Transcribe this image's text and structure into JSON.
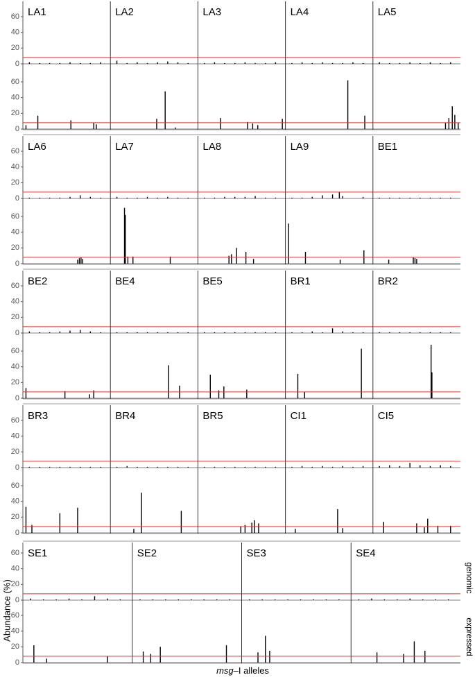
{
  "chart_data": {
    "type": "bar",
    "y_label": "Abundance (%)",
    "x_label_italic": "msg",
    "x_label": "–I alleles",
    "facets": [
      "genomic",
      "expressed"
    ],
    "ylim": [
      0,
      75
    ],
    "yticks": [
      0,
      20,
      40,
      60
    ],
    "xlim": [
      0,
      100
    ],
    "threshold": 8,
    "threshold_color": "#e8302a",
    "color": "#000000",
    "panels": [
      {
        "name": "LA1",
        "genomic": {
          "x": [
            6,
            18,
            30,
            42,
            54,
            66,
            78,
            90
          ],
          "values": [
            2,
            1,
            1,
            1,
            2,
            1,
            1,
            2
          ]
        },
        "expressed": {
          "x": [
            2,
            16,
            55,
            82,
            85
          ],
          "values": [
            5,
            17,
            11,
            8,
            6
          ]
        }
      },
      {
        "name": "LA2",
        "genomic": {
          "x": [
            6,
            18,
            30,
            42,
            54,
            66,
            78,
            90
          ],
          "values": [
            4,
            1,
            2,
            1,
            2,
            3,
            2,
            1
          ]
        },
        "expressed": {
          "x": [
            53,
            63,
            75
          ],
          "values": [
            13,
            48,
            2
          ]
        }
      },
      {
        "name": "LA3",
        "genomic": {
          "x": [
            6,
            18,
            30,
            42,
            54,
            66,
            78,
            90
          ],
          "values": [
            1,
            2,
            1,
            1,
            2,
            1,
            1,
            2
          ]
        },
        "expressed": {
          "x": [
            25,
            57,
            63,
            69,
            98
          ],
          "values": [
            14,
            9,
            7,
            5,
            13
          ]
        }
      },
      {
        "name": "LA4",
        "genomic": {
          "x": [
            6,
            18,
            30,
            42,
            54,
            66,
            78,
            90
          ],
          "values": [
            1,
            2,
            1,
            2,
            1,
            1,
            2,
            1
          ]
        },
        "expressed": {
          "x": [
            72,
            92
          ],
          "values": [
            62,
            17
          ]
        }
      },
      {
        "name": "LA5",
        "genomic": {
          "x": [
            6,
            18,
            30,
            42,
            54,
            66,
            78,
            90
          ],
          "values": [
            2,
            1,
            1,
            2,
            1,
            2,
            1,
            2
          ]
        },
        "expressed": {
          "x": [
            84,
            88,
            92,
            95,
            99
          ],
          "values": [
            8,
            14,
            29,
            18,
            8
          ]
        }
      },
      {
        "name": "LA6",
        "genomic": {
          "x": [
            6,
            18,
            30,
            42,
            54,
            66,
            78,
            90
          ],
          "values": [
            1,
            1,
            1,
            1,
            2,
            4,
            2,
            1
          ]
        },
        "expressed": {
          "x": [
            63,
            65,
            67,
            69
          ],
          "values": [
            5,
            7,
            8,
            6
          ]
        }
      },
      {
        "name": "LA7",
        "genomic": {
          "x": [
            6,
            18,
            30,
            42,
            54,
            66,
            78,
            90
          ],
          "values": [
            2,
            1,
            1,
            2,
            1,
            2,
            1,
            1
          ]
        },
        "expressed": {
          "x": [
            15,
            16,
            19,
            25,
            69
          ],
          "values": [
            71,
            62,
            9,
            9,
            9
          ]
        }
      },
      {
        "name": "LA8",
        "genomic": {
          "x": [
            6,
            18,
            30,
            42,
            54,
            66,
            78,
            90
          ],
          "values": [
            1,
            1,
            2,
            2,
            2,
            3,
            1,
            1
          ]
        },
        "expressed": {
          "x": [
            35,
            38,
            44,
            55,
            64
          ],
          "values": [
            10,
            12,
            20,
            15,
            6
          ]
        }
      },
      {
        "name": "LA9",
        "genomic": {
          "x": [
            6,
            18,
            30,
            42,
            54,
            62,
            66,
            90
          ],
          "values": [
            1,
            1,
            2,
            4,
            5,
            8,
            3,
            2
          ]
        },
        "expressed": {
          "x": [
            2,
            22,
            63,
            91
          ],
          "values": [
            51,
            15,
            5,
            17
          ]
        }
      },
      {
        "name": "BE1",
        "genomic": {
          "x": [
            6,
            18,
            30,
            42,
            54,
            66,
            78,
            90
          ],
          "values": [
            1,
            1,
            1,
            1,
            1,
            1,
            1,
            1
          ]
        },
        "expressed": {
          "x": [
            17,
            46,
            48,
            50
          ],
          "values": [
            5,
            8,
            7,
            6
          ]
        }
      },
      {
        "name": "BE2",
        "genomic": {
          "x": [
            6,
            18,
            30,
            42,
            54,
            66,
            78,
            90
          ],
          "values": [
            2,
            1,
            1,
            2,
            3,
            4,
            2,
            1
          ]
        },
        "expressed": {
          "x": [
            2,
            48,
            77,
            82
          ],
          "values": [
            13,
            9,
            5,
            10
          ]
        }
      },
      {
        "name": "BE4",
        "genomic": {
          "x": [
            6,
            18,
            30,
            42,
            54,
            66,
            78,
            90
          ],
          "values": [
            1,
            1,
            1,
            1,
            1,
            1,
            1,
            1
          ]
        },
        "expressed": {
          "x": [
            67,
            80
          ],
          "values": [
            42,
            16
          ]
        }
      },
      {
        "name": "BE5",
        "genomic": {
          "x": [
            6,
            18,
            30,
            42,
            54,
            66,
            78,
            90
          ],
          "values": [
            1,
            1,
            1,
            1,
            1,
            1,
            1,
            1
          ]
        },
        "expressed": {
          "x": [
            13,
            23,
            29,
            56
          ],
          "values": [
            30,
            10,
            15,
            11
          ]
        }
      },
      {
        "name": "BR1",
        "genomic": {
          "x": [
            6,
            18,
            30,
            42,
            54,
            66,
            78,
            90
          ],
          "values": [
            1,
            1,
            2,
            1,
            6,
            2,
            1,
            1
          ]
        },
        "expressed": {
          "x": [
            13,
            21,
            88
          ],
          "values": [
            31,
            8,
            63
          ]
        }
      },
      {
        "name": "BR2",
        "genomic": {
          "x": [
            6,
            18,
            30,
            42,
            54,
            66,
            78,
            90
          ],
          "values": [
            1,
            1,
            1,
            1,
            1,
            1,
            1,
            1
          ]
        },
        "expressed": {
          "x": [
            67,
            68
          ],
          "values": [
            68,
            33
          ]
        }
      },
      {
        "name": "BR3",
        "genomic": {
          "x": [
            6,
            18,
            30,
            42,
            54,
            66,
            78,
            90
          ],
          "values": [
            1,
            1,
            1,
            1,
            1,
            1,
            1,
            1
          ]
        },
        "expressed": {
          "x": [
            2,
            9,
            42,
            63
          ],
          "values": [
            33,
            10,
            25,
            32
          ]
        }
      },
      {
        "name": "BR4",
        "genomic": {
          "x": [
            6,
            18,
            30,
            42,
            54,
            66,
            78,
            90
          ],
          "values": [
            1,
            2,
            1,
            1,
            1,
            1,
            1,
            1
          ]
        },
        "expressed": {
          "x": [
            26,
            35,
            82
          ],
          "values": [
            5,
            51,
            28
          ]
        }
      },
      {
        "name": "BR5",
        "genomic": {
          "x": [
            6,
            18,
            30,
            42,
            54,
            66,
            78,
            90
          ],
          "values": [
            1,
            1,
            1,
            1,
            1,
            1,
            1,
            1
          ]
        },
        "expressed": {
          "x": [
            49,
            54,
            62,
            65,
            70
          ],
          "values": [
            8,
            10,
            13,
            16,
            12
          ]
        }
      },
      {
        "name": "CI1",
        "genomic": {
          "x": [
            6,
            18,
            30,
            42,
            54,
            66,
            78,
            90
          ],
          "values": [
            1,
            2,
            1,
            2,
            1,
            2,
            1,
            2
          ]
        },
        "expressed": {
          "x": [
            10,
            60,
            66
          ],
          "values": [
            5,
            30,
            6
          ]
        }
      },
      {
        "name": "CI5",
        "genomic": {
          "x": [
            6,
            18,
            30,
            42,
            54,
            66,
            78,
            90
          ],
          "values": [
            2,
            3,
            2,
            6,
            3,
            2,
            3,
            2
          ]
        },
        "expressed": {
          "x": [
            11,
            50,
            59,
            63,
            75,
            90
          ],
          "values": [
            14,
            12,
            7,
            18,
            9,
            9
          ]
        }
      },
      {
        "name": "SE1",
        "genomic": {
          "x": [
            6,
            18,
            30,
            42,
            54,
            66,
            78,
            90
          ],
          "values": [
            2,
            1,
            1,
            2,
            1,
            5,
            2,
            1
          ]
        },
        "expressed": {
          "x": [
            9,
            21,
            78
          ],
          "values": [
            22,
            5,
            8
          ]
        }
      },
      {
        "name": "SE2",
        "genomic": {
          "x": [
            6,
            18,
            30,
            42,
            54,
            66,
            78,
            90
          ],
          "values": [
            1,
            1,
            1,
            1,
            1,
            1,
            1,
            1
          ]
        },
        "expressed": {
          "x": [
            9,
            16,
            25,
            87
          ],
          "values": [
            14,
            11,
            20,
            22
          ]
        }
      },
      {
        "name": "SE3",
        "genomic": {
          "x": [
            6,
            18,
            30,
            42,
            54,
            66,
            78,
            90
          ],
          "values": [
            1,
            1,
            1,
            1,
            1,
            1,
            1,
            1
          ]
        },
        "expressed": {
          "x": [
            14,
            21,
            25
          ],
          "values": [
            13,
            34,
            15
          ]
        }
      },
      {
        "name": "SE4",
        "genomic": {
          "x": [
            6,
            18,
            30,
            42,
            54,
            66,
            78,
            90
          ],
          "values": [
            1,
            2,
            1,
            1,
            2,
            1,
            1,
            1
          ]
        },
        "expressed": {
          "x": [
            23,
            48,
            58,
            68
          ],
          "values": [
            13,
            11,
            27,
            15
          ]
        }
      }
    ]
  }
}
